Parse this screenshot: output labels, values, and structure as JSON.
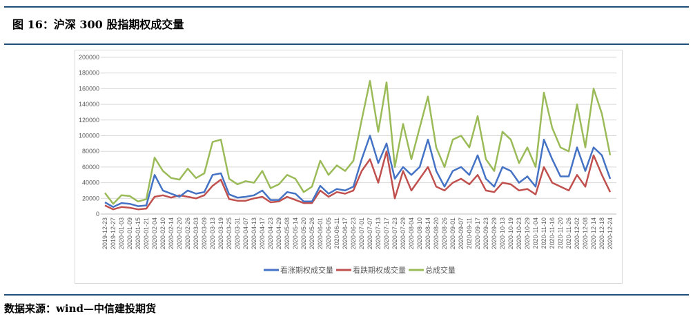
{
  "header": {
    "title": "图 16：沪深 300 股指期权成交量"
  },
  "footer": {
    "source": "数据来源：wind—中信建投期货"
  },
  "chart_data": {
    "type": "line",
    "title": "",
    "xlabel": "",
    "ylabel": "",
    "ylim": [
      0,
      200000
    ],
    "yticks": [
      "0",
      "20000",
      "40000",
      "60000",
      "80000",
      "100000",
      "120000",
      "140000",
      "160000",
      "180000",
      "200000"
    ],
    "grid": true,
    "legend": "bottom",
    "x": [
      "2019-12-23",
      "2019-12-27",
      "2020-01-03",
      "2020-01-09",
      "2020-01-15",
      "2020-01-21",
      "2020-02-04",
      "2020-02-10",
      "2020-02-14",
      "2020-02-20",
      "2020-02-26",
      "2020-03-03",
      "2020-03-09",
      "2020-03-13",
      "2020-03-19",
      "2020-03-25",
      "2020-03-31",
      "2020-04-07",
      "2020-04-13",
      "2020-04-17",
      "2020-04-23",
      "2020-04-29",
      "2020-05-08",
      "2020-05-14",
      "2020-05-20",
      "2020-05-26",
      "2020-06-01",
      "2020-06-05",
      "2020-06-11",
      "2020-06-17",
      "2020-06-23",
      "2020-07-01",
      "2020-07-07",
      "2020-07-13",
      "2020-07-17",
      "2020-07-23",
      "2020-07-29",
      "2020-08-04",
      "2020-08-10",
      "2020-08-14",
      "2020-08-20",
      "2020-08-26",
      "2020-09-01",
      "2020-09-07",
      "2020-09-11",
      "2020-09-17",
      "2020-09-23",
      "2020-09-29",
      "2020-10-13",
      "2020-10-19",
      "2020-10-23",
      "2020-10-29",
      "2020-11-04",
      "2020-11-10",
      "2020-11-16",
      "2020-11-20",
      "2020-11-26",
      "2020-12-02",
      "2020-12-08",
      "2020-12-14",
      "2020-12-18",
      "2020-12-24"
    ],
    "series": [
      {
        "name": "看涨期权成交量",
        "color": "#4472c4",
        "values": [
          15000,
          9000,
          14000,
          13000,
          10000,
          11000,
          50000,
          30000,
          26000,
          22000,
          30000,
          26000,
          28000,
          50000,
          52000,
          25000,
          21000,
          22000,
          24000,
          30000,
          18000,
          18000,
          28000,
          26000,
          16000,
          16000,
          36000,
          26000,
          32000,
          30000,
          35000,
          70000,
          100000,
          65000,
          90000,
          45000,
          60000,
          50000,
          60000,
          95000,
          55000,
          35000,
          55000,
          60000,
          50000,
          75000,
          45000,
          35000,
          60000,
          55000,
          40000,
          48000,
          35000,
          95000,
          70000,
          48000,
          48000,
          85000,
          55000,
          85000,
          75000,
          45000
        ]
      },
      {
        "name": "看跌期权成交量",
        "color": "#c0504d",
        "values": [
          11000,
          6000,
          9000,
          8000,
          6000,
          7000,
          22000,
          24000,
          21000,
          24000,
          22000,
          20000,
          24000,
          36000,
          44000,
          19000,
          17000,
          17000,
          20000,
          22000,
          15000,
          16000,
          22000,
          18000,
          14000,
          14000,
          30000,
          22000,
          28000,
          26000,
          30000,
          55000,
          70000,
          40000,
          80000,
          20000,
          55000,
          30000,
          45000,
          60000,
          35000,
          30000,
          40000,
          45000,
          38000,
          50000,
          30000,
          28000,
          40000,
          38000,
          30000,
          32000,
          25000,
          60000,
          40000,
          35000,
          30000,
          50000,
          35000,
          75000,
          50000,
          28000
        ]
      },
      {
        "name": "总成交量",
        "color": "#9bbb59",
        "values": [
          27000,
          13000,
          24000,
          23000,
          16000,
          19000,
          72000,
          55000,
          46000,
          44000,
          58000,
          46000,
          52000,
          92000,
          95000,
          45000,
          38000,
          42000,
          40000,
          55000,
          33000,
          38000,
          50000,
          45000,
          28000,
          35000,
          68000,
          50000,
          62000,
          55000,
          68000,
          120000,
          170000,
          105000,
          168000,
          60000,
          115000,
          70000,
          110000,
          150000,
          85000,
          60000,
          95000,
          100000,
          85000,
          125000,
          70000,
          55000,
          105000,
          95000,
          65000,
          85000,
          60000,
          155000,
          110000,
          85000,
          80000,
          140000,
          85000,
          160000,
          128000,
          75000
        ]
      }
    ]
  }
}
